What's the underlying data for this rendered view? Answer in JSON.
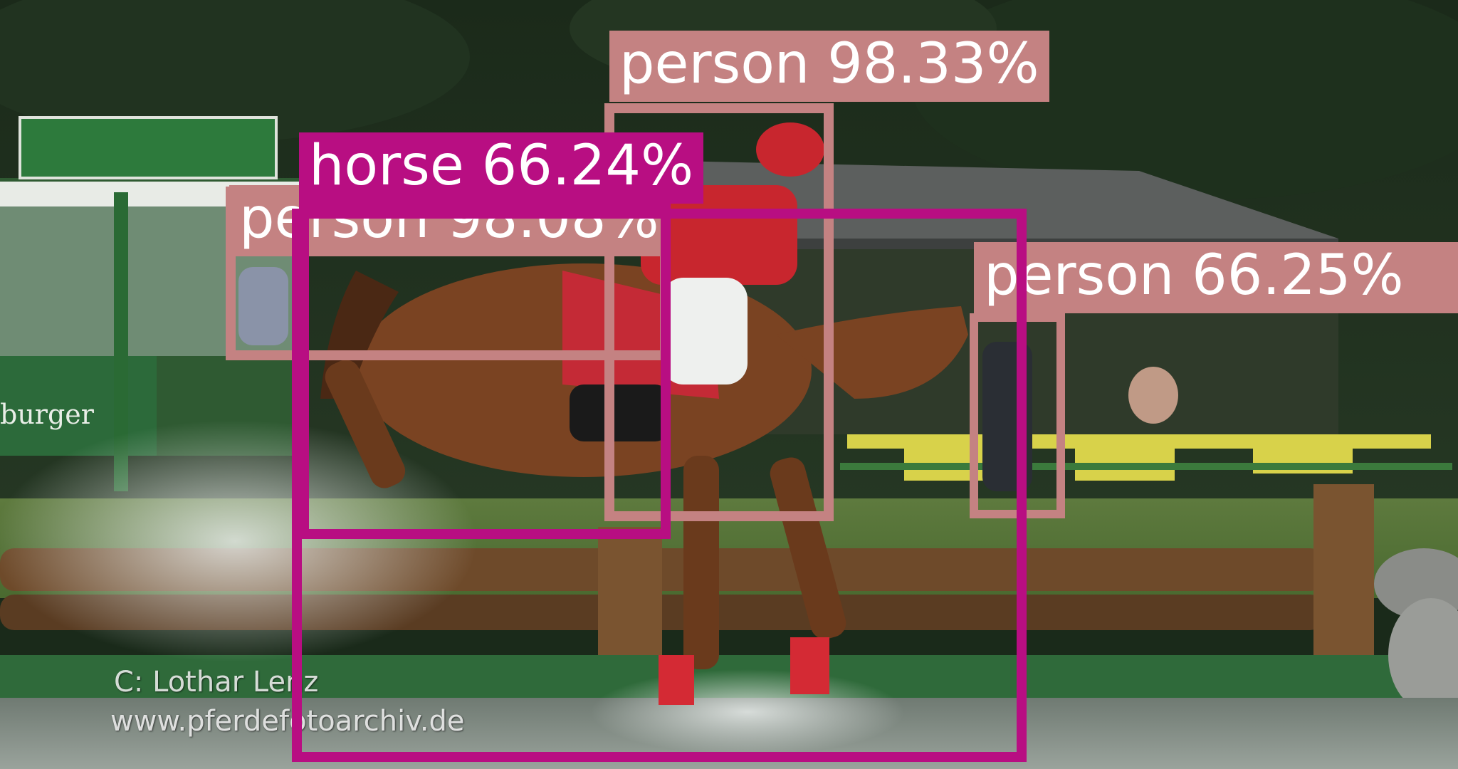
{
  "photo": {
    "watermark_line1": "C:   Lothar Lenz",
    "watermark_line2": "www.pferdefotoarchiv.de",
    "sign_text": "burger"
  },
  "detections": [
    {
      "label": "person 98.08%",
      "color": "#c48282"
    },
    {
      "label": "person 98.33%",
      "color": "#c48282"
    },
    {
      "label": "person 66.25%",
      "color": "#c48282"
    },
    {
      "label": "horse 66.24%",
      "color": "#b80e82"
    },
    {
      "label": "horse",
      "color": "#b80e82"
    }
  ],
  "colors": {
    "person": "#c48282",
    "horse": "#b80e82"
  }
}
